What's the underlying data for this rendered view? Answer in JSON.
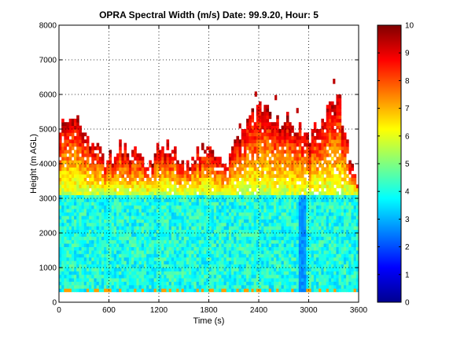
{
  "chart_data": {
    "type": "heatmap",
    "title": "OPRA Spectral Width (m/s)  Date: 99.9.20, Hour: 5",
    "xlabel": "Time (s)",
    "ylabel": "Height (m AGL)",
    "xlim": [
      0,
      3600
    ],
    "ylim": [
      0,
      8000
    ],
    "x_ticks": [
      "0",
      "600",
      "1200",
      "1800",
      "2400",
      "3000",
      "3600"
    ],
    "y_ticks": [
      "0",
      "1000",
      "2000",
      "3000",
      "4000",
      "5000",
      "6000",
      "7000",
      "8000"
    ],
    "colorbar": {
      "label": "",
      "range": [
        0,
        10
      ],
      "ticks": [
        "0",
        "1",
        "2",
        "3",
        "4",
        "5",
        "6",
        "7",
        "8",
        "9",
        "10"
      ],
      "colormap": "jet"
    },
    "grid": true,
    "bottom_height_m": 300,
    "layer_top_m": 3100,
    "lower_layer_value": 4.0,
    "upper_layer_value": 9.0,
    "echo_top_profile": {
      "time_s": [
        0,
        120,
        240,
        360,
        480,
        600,
        720,
        840,
        960,
        1080,
        1200,
        1320,
        1440,
        1560,
        1680,
        1800,
        1920,
        2040,
        2160,
        2280,
        2400,
        2520,
        2640,
        2760,
        2880,
        3000,
        3120,
        3240,
        3360,
        3480,
        3600
      ],
      "height_m": [
        4800,
        5300,
        5200,
        4700,
        4300,
        4000,
        4500,
        4300,
        4200,
        4000,
        4400,
        4500,
        4100,
        3900,
        4300,
        4500,
        4200,
        4000,
        4600,
        5300,
        5500,
        5400,
        5200,
        5300,
        5000,
        4700,
        5000,
        5600,
        5900,
        4300,
        3200
      ]
    },
    "notable_features": {
      "low_width_column_time_s": [
        2880,
        2950
      ],
      "isolated_echoes_time_s": [
        2160,
        2350,
        2590,
        2850,
        3290
      ]
    }
  }
}
